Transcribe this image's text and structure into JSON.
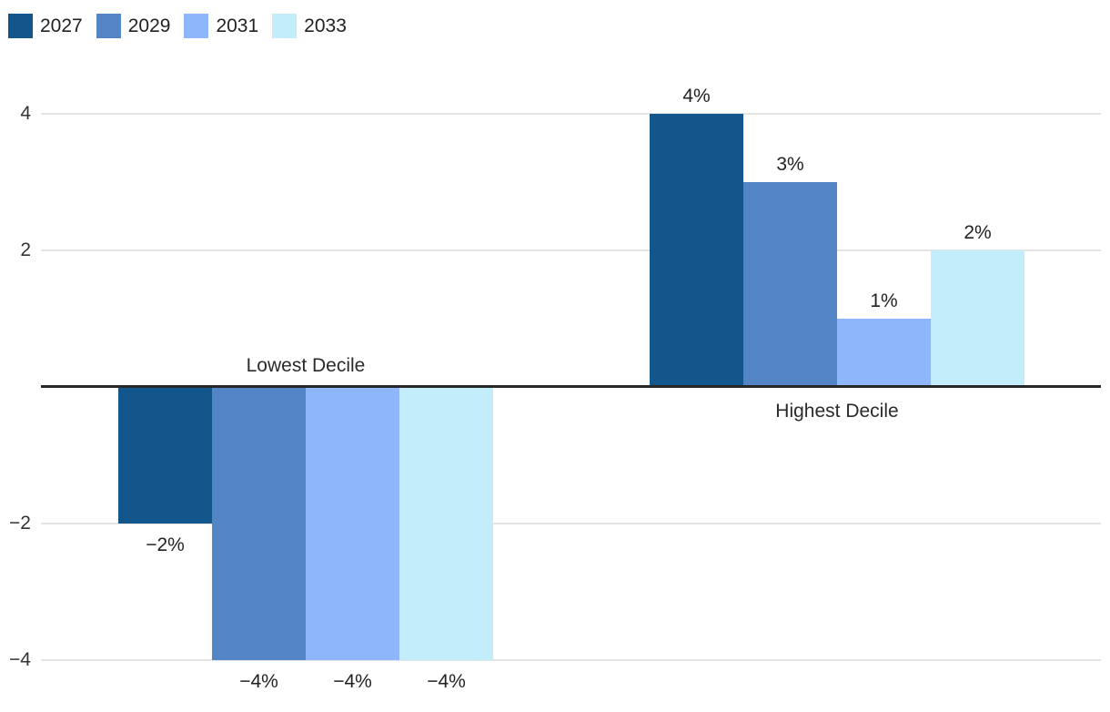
{
  "chart_data": {
    "type": "bar",
    "title": "",
    "xlabel": "",
    "ylabel": "",
    "unit": "%",
    "categories": [
      "Lowest Decile",
      "Highest Decile"
    ],
    "series": [
      {
        "name": "2027",
        "color": "#12568c",
        "values": [
          -2,
          4
        ],
        "value_labels": [
          "−2%",
          "4%"
        ]
      },
      {
        "name": "2029",
        "color": "#5284c6",
        "values": [
          -4,
          3
        ],
        "value_labels": [
          "−4%",
          "3%"
        ]
      },
      {
        "name": "2031",
        "color": "#8db6fb",
        "values": [
          -4,
          1
        ],
        "value_labels": [
          "−4%",
          "1%"
        ]
      },
      {
        "name": "2033",
        "color": "#c4edfb",
        "values": [
          -4,
          2
        ],
        "value_labels": [
          "−4%",
          "2%"
        ]
      }
    ],
    "y_ticks": [
      {
        "value": 4,
        "label": "4"
      },
      {
        "value": 2,
        "label": "2"
      },
      {
        "value": -2,
        "label": "−2"
      },
      {
        "value": -4,
        "label": "−4"
      }
    ],
    "ylim": [
      -4.75,
      4.3
    ],
    "grid": true,
    "zero_baseline": true,
    "legend_position": "top-left",
    "colors": {
      "gridline": "#e4e4e4",
      "baseline": "#262626",
      "text": "#222222"
    }
  }
}
